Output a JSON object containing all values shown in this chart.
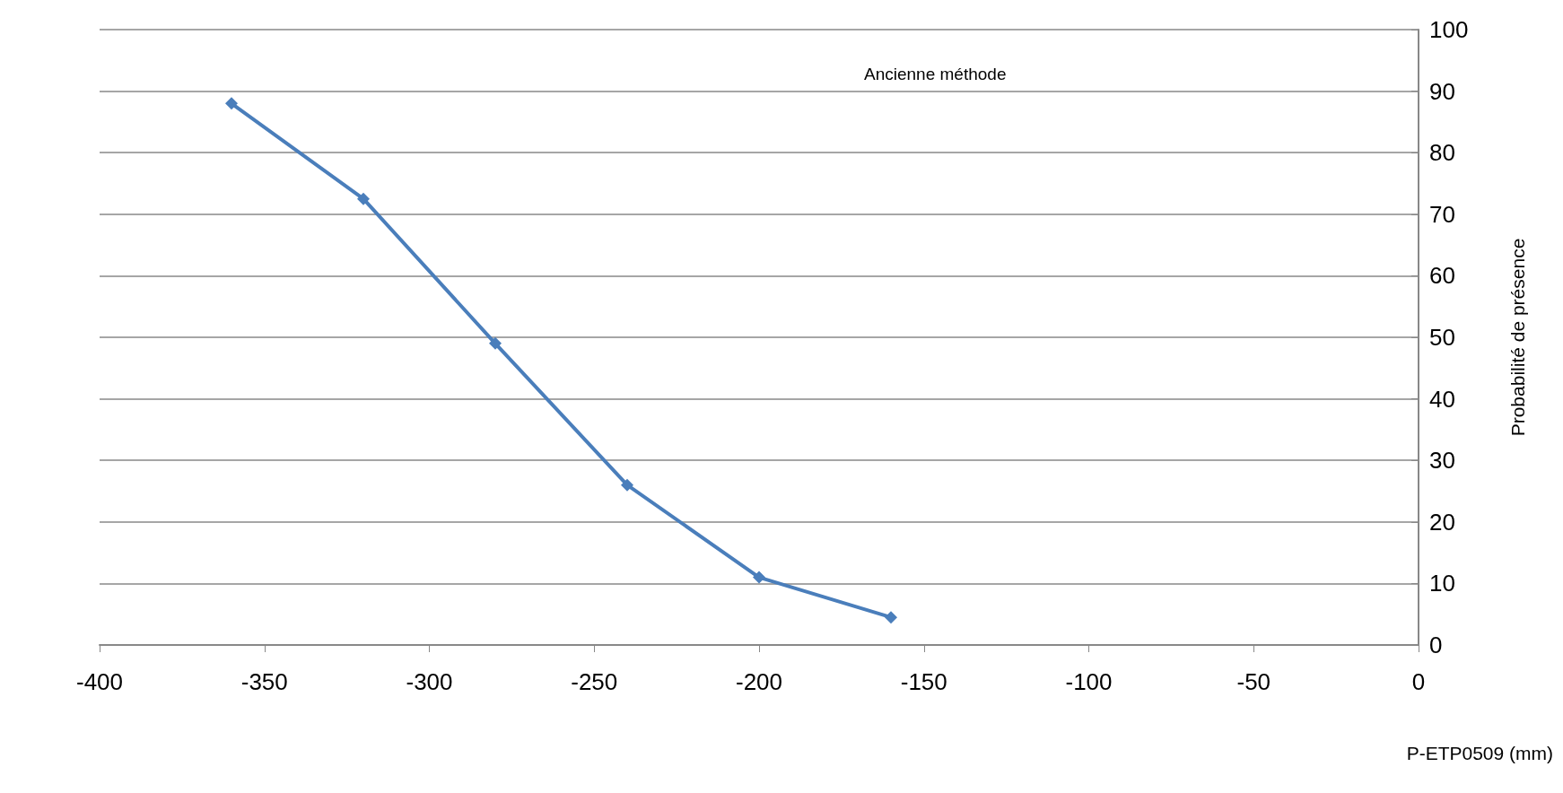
{
  "chart_data": {
    "type": "line",
    "title": "Ancienne méthode",
    "xlabel": "P-ETP0509 (mm)",
    "ylabel": "Probabilité de présence",
    "x": [
      -360,
      -320,
      -280,
      -240,
      -200,
      -160
    ],
    "series": [
      {
        "color": "#4a7ebb",
        "values": [
          88,
          72.5,
          49,
          26,
          11,
          4.5
        ]
      }
    ],
    "xlim": [
      -400,
      0
    ],
    "xticks": [
      -400,
      -350,
      -300,
      -250,
      -200,
      -150,
      -100,
      -50,
      0
    ],
    "ylim": [
      0,
      100
    ],
    "yticks": [
      0,
      10,
      20,
      30,
      40,
      50,
      60,
      70,
      80,
      90,
      100
    ],
    "grid": "y",
    "marker": "diamond",
    "line_style": "solid"
  }
}
